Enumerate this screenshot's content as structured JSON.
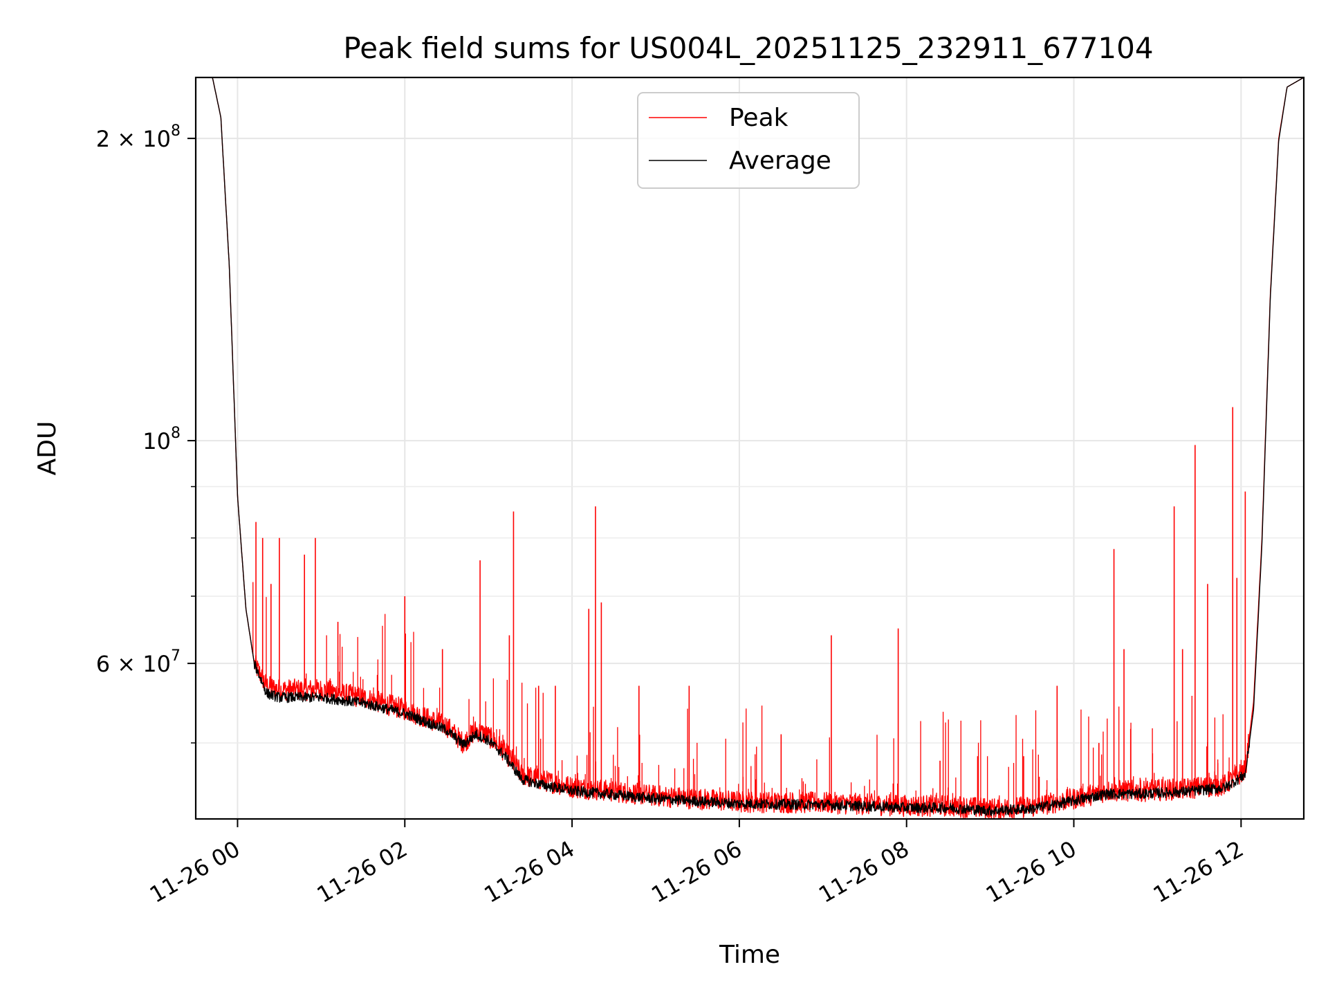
{
  "chart_data": {
    "type": "line",
    "title": "Peak field sums for US004L_20251125_232911_677104",
    "xlabel": "Time",
    "ylabel": "ADU",
    "yscale": "log",
    "ylim": [
      42000000,
      230000000
    ],
    "xlim": [
      -0.5,
      12.75
    ],
    "grid": true,
    "legend_position": "top-center",
    "x_unit": "hours since 11-26 00:00",
    "x_ticks": [
      {
        "x": 0,
        "label": "11-26 00"
      },
      {
        "x": 2,
        "label": "11-26 02"
      },
      {
        "x": 4,
        "label": "11-26 04"
      },
      {
        "x": 6,
        "label": "11-26 06"
      },
      {
        "x": 8,
        "label": "11-26 08"
      },
      {
        "x": 10,
        "label": "11-26 10"
      },
      {
        "x": 12,
        "label": "11-26 12"
      }
    ],
    "y_major_ticks": [
      {
        "y": 200000000,
        "base": "2 × 10",
        "exp": "8"
      },
      {
        "y": 100000000,
        "base": "10",
        "exp": "8"
      },
      {
        "y": 60000000,
        "base": "6 × 10",
        "exp": "7"
      }
    ],
    "y_minor_ticks": [
      50000000,
      70000000,
      80000000,
      90000000
    ],
    "series": [
      {
        "name": "Peak",
        "color": "#ff0000",
        "baseline": [
          [
            -0.5,
            230000000
          ],
          [
            -0.3,
            230000000
          ],
          [
            -0.2,
            210000000
          ],
          [
            -0.1,
            150000000
          ],
          [
            0,
            88000000
          ],
          [
            0.1,
            68000000
          ],
          [
            0.2,
            60000000
          ],
          [
            0.35,
            57000000
          ],
          [
            0.5,
            56500000
          ],
          [
            1,
            56500000
          ],
          [
            1.5,
            55500000
          ],
          [
            2,
            54000000
          ],
          [
            2.5,
            52000000
          ],
          [
            2.7,
            50000000
          ],
          [
            2.85,
            51500000
          ],
          [
            3,
            50800000
          ],
          [
            3.2,
            49000000
          ],
          [
            3.4,
            46500000
          ],
          [
            3.6,
            46000000
          ],
          [
            4,
            45200000
          ],
          [
            5,
            44300000
          ],
          [
            6,
            43700000
          ],
          [
            7,
            43600000
          ],
          [
            8,
            43300000
          ],
          [
            8.5,
            43300000
          ],
          [
            9,
            43000000
          ],
          [
            9.5,
            43200000
          ],
          [
            10,
            44000000
          ],
          [
            10.4,
            44800000
          ],
          [
            10.8,
            44800000
          ],
          [
            11.3,
            45000000
          ],
          [
            11.8,
            45400000
          ],
          [
            12.05,
            47000000
          ],
          [
            12.15,
            55000000
          ],
          [
            12.25,
            80000000
          ],
          [
            12.35,
            140000000
          ],
          [
            12.45,
            200000000
          ],
          [
            12.55,
            225000000
          ],
          [
            12.75,
            230000000
          ]
        ],
        "spikes": [
          [
            0.22,
            83000000
          ],
          [
            0.3,
            80000000
          ],
          [
            0.4,
            72000000
          ],
          [
            0.5,
            80000000
          ],
          [
            0.8,
            77000000
          ],
          [
            0.93,
            80000000
          ],
          [
            1.2,
            66000000
          ],
          [
            2,
            70000000
          ],
          [
            2.45,
            62000000
          ],
          [
            2.9,
            76000000
          ],
          [
            3.3,
            85000000
          ],
          [
            3.25,
            64000000
          ],
          [
            3.6,
            57000000
          ],
          [
            3.8,
            57000000
          ],
          [
            4.2,
            68000000
          ],
          [
            4.28,
            86000000
          ],
          [
            4.35,
            69000000
          ],
          [
            4.8,
            57000000
          ],
          [
            5.4,
            57000000
          ],
          [
            6.5,
            51000000
          ],
          [
            7.1,
            64000000
          ],
          [
            7.9,
            65000000
          ],
          [
            8.4,
            48000000
          ],
          [
            8.85,
            48500000
          ],
          [
            9.4,
            48500000
          ],
          [
            9.8,
            57000000
          ],
          [
            10.3,
            50000000
          ],
          [
            10.48,
            78000000
          ],
          [
            10.6,
            62000000
          ],
          [
            11.2,
            86000000
          ],
          [
            11.3,
            62000000
          ],
          [
            11.45,
            99000000
          ],
          [
            11.6,
            72000000
          ],
          [
            11.9,
            108000000
          ],
          [
            11.95,
            73000000
          ],
          [
            12.05,
            89000000
          ]
        ],
        "noise_amp": 0.025
      },
      {
        "name": "Average",
        "color": "#000000",
        "baseline": [
          [
            -0.5,
            230000000
          ],
          [
            -0.3,
            230000000
          ],
          [
            -0.2,
            210000000
          ],
          [
            -0.1,
            150000000
          ],
          [
            0,
            88000000
          ],
          [
            0.1,
            68000000
          ],
          [
            0.2,
            60000000
          ],
          [
            0.35,
            56000000
          ],
          [
            0.5,
            55500000
          ],
          [
            1,
            55500000
          ],
          [
            1.5,
            54800000
          ],
          [
            2,
            53500000
          ],
          [
            2.5,
            51500000
          ],
          [
            2.7,
            49800000
          ],
          [
            2.85,
            51000000
          ],
          [
            3,
            50300000
          ],
          [
            3.2,
            48500000
          ],
          [
            3.4,
            46000000
          ],
          [
            3.6,
            45500000
          ],
          [
            4,
            44800000
          ],
          [
            5,
            44000000
          ],
          [
            6,
            43500000
          ],
          [
            7,
            43400000
          ],
          [
            8,
            43100000
          ],
          [
            8.5,
            43100000
          ],
          [
            9,
            42800000
          ],
          [
            9.5,
            43000000
          ],
          [
            10,
            43800000
          ],
          [
            10.4,
            44500000
          ],
          [
            10.8,
            44500000
          ],
          [
            11.3,
            44700000
          ],
          [
            11.8,
            45100000
          ],
          [
            12.05,
            46500000
          ],
          [
            12.15,
            54000000
          ],
          [
            12.25,
            79000000
          ],
          [
            12.35,
            139000000
          ],
          [
            12.45,
            199000000
          ],
          [
            12.55,
            225000000
          ],
          [
            12.75,
            230000000
          ]
        ],
        "noise_amp": 0.012
      }
    ]
  }
}
